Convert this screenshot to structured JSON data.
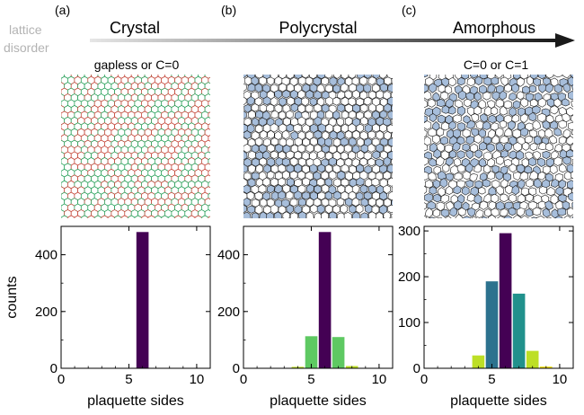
{
  "header": {
    "axis_label_line1": "lattice",
    "axis_label_line2": "disorder",
    "panel_letters": [
      "(a)",
      "(b)",
      "(c)"
    ],
    "column_titles": [
      "Crystal",
      "Polycrystal",
      "Amorphous"
    ],
    "annotations": [
      "gapless or C=0",
      "",
      "C=0 or C=1"
    ]
  },
  "colors": {
    "cell_fill_white": "#ffffff",
    "cell_fill_blue": "#a7bedb",
    "edge_red": "#c0392b",
    "edge_green": "#1a9a4f",
    "arrow_start": "#e6e6e6",
    "arrow_end": "#1a1a1a"
  },
  "chart_data": [
    {
      "type": "bar",
      "panel": "(a)",
      "xlabel": "plaquette sides",
      "ylabel": "counts",
      "xlim": [
        0,
        11
      ],
      "ylim": [
        0,
        500
      ],
      "xticks": [
        0,
        5,
        10
      ],
      "yticks": [
        0,
        200,
        400
      ],
      "grid": false,
      "bars": [
        {
          "x": 6,
          "value": 480,
          "color": "#440154"
        }
      ]
    },
    {
      "type": "bar",
      "panel": "(b)",
      "xlabel": "plaquette sides",
      "ylabel": "",
      "xlim": [
        0,
        11
      ],
      "ylim": [
        0,
        500
      ],
      "xticks": [
        0,
        5,
        10
      ],
      "yticks": [
        0,
        200,
        400
      ],
      "grid": false,
      "bars": [
        {
          "x": 4,
          "value": 5,
          "color": "#bddf26"
        },
        {
          "x": 5,
          "value": 113,
          "color": "#5ec962"
        },
        {
          "x": 6,
          "value": 480,
          "color": "#440154"
        },
        {
          "x": 7,
          "value": 110,
          "color": "#5ec962"
        },
        {
          "x": 8,
          "value": 8,
          "color": "#bddf26"
        }
      ]
    },
    {
      "type": "bar",
      "panel": "(c)",
      "xlabel": "plaquette sides",
      "ylabel": "",
      "xlim": [
        0,
        11
      ],
      "ylim": [
        0,
        310
      ],
      "xticks": [
        0,
        5,
        10
      ],
      "yticks": [
        0,
        100,
        200,
        300
      ],
      "grid": false,
      "bars": [
        {
          "x": 4,
          "value": 28,
          "color": "#bddf26"
        },
        {
          "x": 5,
          "value": 190,
          "color": "#2c728e"
        },
        {
          "x": 6,
          "value": 295,
          "color": "#440154"
        },
        {
          "x": 7,
          "value": 163,
          "color": "#21918c"
        },
        {
          "x": 8,
          "value": 38,
          "color": "#bddf26"
        },
        {
          "x": 9,
          "value": 4,
          "color": "#fde725"
        }
      ]
    }
  ]
}
